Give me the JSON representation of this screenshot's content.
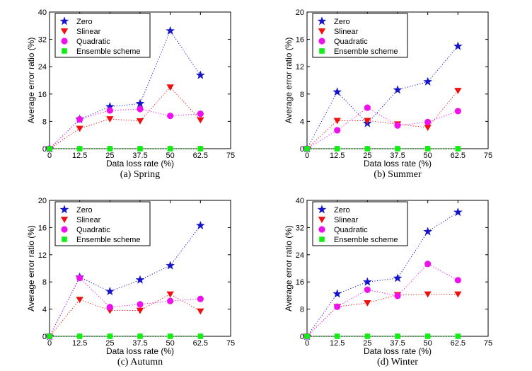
{
  "chart_data": [
    {
      "type": "line",
      "caption": "(a)  Spring",
      "xlabel": "Data loss rate (%)",
      "ylabel": "Average error ratio (%)",
      "xlim": [
        0,
        75
      ],
      "ylim": [
        0,
        40
      ],
      "xticks": [
        "0",
        "12.5",
        "25",
        "37.5",
        "50",
        "62.5",
        "75"
      ],
      "yticks": [
        "0",
        "8",
        "16",
        "24",
        "32",
        "40"
      ],
      "x": [
        0,
        12.5,
        25,
        37.5,
        50,
        62.5
      ],
      "legend_position": "top-left",
      "series": [
        {
          "name": "Zero",
          "values": [
            0,
            8.6,
            12.3,
            13.2,
            34.5,
            21.5
          ]
        },
        {
          "name": "Slinear",
          "values": [
            0,
            5.9,
            8.7,
            8.1,
            18.0,
            8.4
          ]
        },
        {
          "name": "Quadratic",
          "values": [
            0,
            8.6,
            11.2,
            11.6,
            9.6,
            10.2
          ]
        },
        {
          "name": "Ensemble scheme",
          "values": [
            0,
            0,
            0,
            0,
            0,
            0
          ]
        }
      ]
    },
    {
      "type": "line",
      "caption": "(b)  Summer",
      "xlabel": "Data loss rate (%)",
      "ylabel": "Average error ratio (%)",
      "xlim": [
        0,
        75
      ],
      "ylim": [
        0,
        20
      ],
      "xticks": [
        "0",
        "12.5",
        "25",
        "37.5",
        "50",
        "62.5",
        "75"
      ],
      "yticks": [
        "0",
        "4",
        "8",
        "12",
        "16",
        "20"
      ],
      "x": [
        0,
        12.5,
        25,
        37.5,
        50,
        62.5
      ],
      "legend_position": "top-left",
      "series": [
        {
          "name": "Zero",
          "values": [
            0,
            8.3,
            3.7,
            8.6,
            9.8,
            15.0
          ]
        },
        {
          "name": "Slinear",
          "values": [
            0,
            4.1,
            4.1,
            3.6,
            3.1,
            8.5
          ]
        },
        {
          "name": "Quadratic",
          "values": [
            0,
            2.7,
            6.0,
            3.4,
            3.9,
            5.5
          ]
        },
        {
          "name": "Ensemble scheme",
          "values": [
            0,
            0,
            0,
            0,
            0,
            0
          ]
        }
      ]
    },
    {
      "type": "line",
      "caption": "(c)  Autumn",
      "xlabel": "Data loss rate (%)",
      "ylabel": "Average error ratio (%)",
      "xlim": [
        0,
        75
      ],
      "ylim": [
        0,
        20
      ],
      "xticks": [
        "0",
        "12.5",
        "25",
        "37.5",
        "50",
        "62.5",
        "75"
      ],
      "yticks": [
        "0",
        "4",
        "8",
        "12",
        "16",
        "20"
      ],
      "x": [
        0,
        12.5,
        25,
        37.5,
        50,
        62.5
      ],
      "legend_position": "top-left",
      "series": [
        {
          "name": "Zero",
          "values": [
            0,
            8.7,
            6.6,
            8.3,
            10.4,
            16.3
          ]
        },
        {
          "name": "Slinear",
          "values": [
            0,
            5.4,
            3.8,
            3.8,
            6.2,
            3.7
          ]
        },
        {
          "name": "Quadratic",
          "values": [
            0,
            8.6,
            4.3,
            4.7,
            5.2,
            5.5
          ]
        },
        {
          "name": "Ensemble scheme",
          "values": [
            0,
            0,
            0,
            0,
            0,
            0
          ]
        }
      ]
    },
    {
      "type": "line",
      "caption": "(d)  Winter",
      "xlabel": "Data loss rate (%)",
      "ylabel": "Average error ratio (%)",
      "xlim": [
        0,
        75
      ],
      "ylim": [
        0,
        40
      ],
      "xticks": [
        "0",
        "12.5",
        "25",
        "37.5",
        "50",
        "62.5",
        "75"
      ],
      "yticks": [
        "0",
        "8",
        "16",
        "24",
        "32",
        "40"
      ],
      "x": [
        0,
        12.5,
        25,
        37.5,
        50,
        62.5
      ],
      "legend_position": "top-left",
      "series": [
        {
          "name": "Zero",
          "values": [
            0,
            12.5,
            16.0,
            17.1,
            30.8,
            36.5
          ]
        },
        {
          "name": "Slinear",
          "values": [
            0,
            8.7,
            9.8,
            12.2,
            12.4,
            12.4
          ]
        },
        {
          "name": "Quadratic",
          "values": [
            0,
            8.7,
            13.7,
            11.9,
            21.3,
            16.5
          ]
        },
        {
          "name": "Ensemble scheme",
          "values": [
            0,
            0,
            0,
            0,
            0,
            0
          ]
        }
      ]
    }
  ],
  "series_style": {
    "colors": [
      "#1414c8",
      "#ee1111",
      "#ee11ee",
      "#11ee11"
    ],
    "markers": [
      "star",
      "triangle-down",
      "circle",
      "square"
    ]
  }
}
